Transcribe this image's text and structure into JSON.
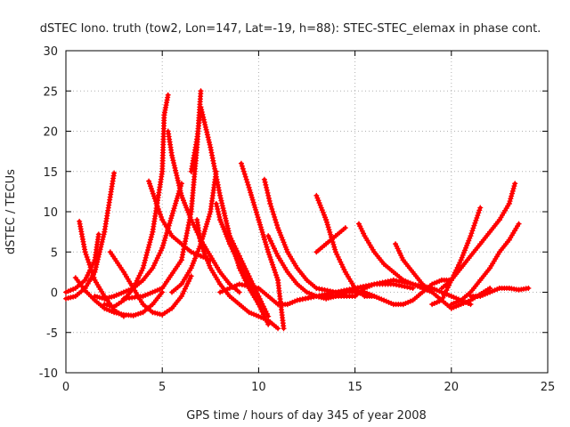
{
  "chart_data": {
    "type": "scatter",
    "title": "dSTEC Iono. truth (tow2, Lon=147, Lat=-19, h=88): STEC-STEC_elemax in phase cont.",
    "xlabel": "GPS time / hours of day 345 of year 2008",
    "ylabel": "dSTEC  / TECUs",
    "xlim": [
      0,
      25
    ],
    "ylim": [
      -10,
      30
    ],
    "xticks": [
      0,
      5,
      10,
      15,
      20,
      25
    ],
    "yticks": [
      -10,
      -5,
      0,
      5,
      10,
      15,
      20,
      25,
      30
    ],
    "grid": true,
    "marker": "plus",
    "color": "#ff0000",
    "series": [
      {
        "x": [
          0.0,
          0.5,
          1.0,
          1.5,
          2.0,
          2.5
        ],
        "y": [
          -0.8,
          -0.5,
          0.5,
          2.5,
          7.5,
          14.8
        ]
      },
      {
        "x": [
          0.0,
          0.5,
          1.0,
          1.5,
          1.7
        ],
        "y": [
          0.0,
          0.5,
          1.5,
          4.0,
          7.2
        ]
      },
      {
        "x": [
          0.7,
          1.0,
          1.5,
          2.0,
          2.5,
          3.0
        ],
        "y": [
          8.8,
          5.0,
          1.5,
          -0.5,
          -2.2,
          -3.0
        ]
      },
      {
        "x": [
          0.5,
          1.0,
          1.5,
          2.0,
          2.5,
          3.0,
          3.5,
          4.0,
          4.5,
          5.0
        ],
        "y": [
          1.8,
          0.2,
          -1.0,
          -2.0,
          -2.5,
          -2.8,
          -2.9,
          -2.5,
          -1.5,
          0.0
        ]
      },
      {
        "x": [
          1.5,
          2.0,
          2.5,
          3.0,
          3.5,
          4.0,
          4.5,
          5.0,
          5.5,
          6.0
        ],
        "y": [
          -0.5,
          -0.8,
          -0.5,
          0.0,
          0.5,
          1.5,
          3.0,
          5.5,
          9.5,
          13.5
        ]
      },
      {
        "x": [
          2.0,
          2.5,
          3.0,
          3.5,
          4.0,
          4.5,
          5.0,
          5.1,
          5.3
        ],
        "y": [
          -1.5,
          -1.8,
          -1.0,
          0.5,
          3.0,
          7.5,
          15.0,
          22.0,
          24.5
        ]
      },
      {
        "x": [
          2.3,
          3.0,
          3.5,
          4.0,
          4.5,
          5.0,
          5.5,
          6.0,
          6.5
        ],
        "y": [
          5.0,
          2.5,
          0.5,
          -1.5,
          -2.5,
          -2.8,
          -2.0,
          -0.5,
          2.0
        ]
      },
      {
        "x": [
          3.0,
          4.0,
          5.0,
          6.0,
          6.5,
          6.8,
          7.0
        ],
        "y": [
          -0.8,
          -0.5,
          0.5,
          4.0,
          10.0,
          18.0,
          25.0
        ]
      },
      {
        "x": [
          4.3,
          4.7,
          5.0,
          5.5,
          6.0,
          6.5,
          7.0,
          7.5
        ],
        "y": [
          13.8,
          11.0,
          9.0,
          7.0,
          6.0,
          5.0,
          4.5,
          4.0
        ]
      },
      {
        "x": [
          5.3,
          5.5,
          6.0,
          6.5,
          7.0,
          7.5,
          8.0,
          8.5,
          9.0
        ],
        "y": [
          20.0,
          17.0,
          12.0,
          9.0,
          6.5,
          4.5,
          2.5,
          1.0,
          0.0
        ]
      },
      {
        "x": [
          6.5,
          6.8,
          7.0,
          7.5,
          8.0,
          8.5,
          9.0,
          9.5,
          10.0
        ],
        "y": [
          15.0,
          19.0,
          23.0,
          18.0,
          12.0,
          7.0,
          3.0,
          0.5,
          -1.5
        ]
      },
      {
        "x": [
          5.5,
          6.0,
          6.5,
          7.0,
          7.5,
          7.8
        ],
        "y": [
          0.0,
          1.0,
          3.0,
          6.0,
          10.0,
          15.0
        ]
      },
      {
        "x": [
          6.8,
          7.0,
          7.5,
          8.0,
          8.5,
          9.0,
          9.5,
          10.0,
          10.5,
          11.0
        ],
        "y": [
          9.0,
          6.0,
          3.0,
          1.0,
          -0.5,
          -1.5,
          -2.5,
          -3.0,
          -3.5,
          -4.5
        ]
      },
      {
        "x": [
          7.8,
          8.0,
          8.5,
          9.0,
          9.5,
          10.0,
          10.5
        ],
        "y": [
          11.0,
          9.0,
          6.0,
          3.5,
          1.0,
          -1.5,
          -4.0
        ]
      },
      {
        "x": [
          8.5,
          9.0,
          9.5,
          10.0,
          10.5
        ],
        "y": [
          7.0,
          4.5,
          2.0,
          -0.5,
          -3.0
        ]
      },
      {
        "x": [
          9.1,
          9.5,
          10.0,
          10.5,
          11.0,
          11.3
        ],
        "y": [
          16.0,
          13.0,
          9.0,
          5.0,
          1.5,
          -4.5
        ]
      },
      {
        "x": [
          10.3,
          10.6,
          11.0,
          11.5,
          12.0,
          12.5,
          13.0,
          14.0,
          15.0,
          16.0
        ],
        "y": [
          14.0,
          11.0,
          8.0,
          5.0,
          3.0,
          1.5,
          0.5,
          0.0,
          0.0,
          -0.5
        ]
      },
      {
        "x": [
          8.0,
          9.0,
          10.0,
          10.5,
          11.0,
          11.5,
          12.0,
          13.0,
          14.0,
          15.0
        ],
        "y": [
          0.0,
          1.0,
          0.5,
          -0.5,
          -1.5,
          -1.5,
          -1.0,
          -0.5,
          -0.5,
          -0.5
        ]
      },
      {
        "x": [
          10.5,
          11.0,
          11.5,
          12.0,
          12.5,
          13.0,
          13.5,
          14.0,
          14.5,
          15.0
        ],
        "y": [
          7.0,
          4.5,
          2.5,
          1.0,
          0.0,
          -0.5,
          -0.8,
          -0.5,
          0.0,
          0.5
        ]
      },
      {
        "x": [
          13.0,
          13.5,
          14.0,
          14.5,
          15.0,
          15.5,
          16.0
        ],
        "y": [
          12.0,
          9.0,
          5.0,
          2.5,
          0.5,
          -0.5,
          -0.5
        ]
      },
      {
        "x": [
          12.0,
          13.0,
          14.0,
          15.0,
          16.0,
          17.0,
          18.0
        ],
        "y": [
          -1.0,
          -0.5,
          0.0,
          0.5,
          1.0,
          1.0,
          0.5
        ]
      },
      {
        "x": [
          13.0,
          13.5,
          14.0,
          14.5
        ],
        "y": [
          5.0,
          6.0,
          7.0,
          8.0
        ]
      },
      {
        "x": [
          15.2,
          15.5,
          16.0,
          16.5,
          17.0,
          17.5,
          18.0,
          18.5,
          19.0
        ],
        "y": [
          8.5,
          7.0,
          5.0,
          3.5,
          2.5,
          1.5,
          1.0,
          0.5,
          0.0
        ]
      },
      {
        "x": [
          15.5,
          16.0,
          16.5,
          17.0,
          17.5,
          18.0,
          18.5,
          19.0,
          19.5,
          20.0
        ],
        "y": [
          0.0,
          -0.5,
          -1.0,
          -1.5,
          -1.5,
          -1.0,
          0.0,
          1.0,
          1.5,
          1.5
        ]
      },
      {
        "x": [
          15.0,
          15.5,
          16.0,
          17.0,
          18.0,
          19.0,
          19.5,
          20.0,
          20.5,
          21.0
        ],
        "y": [
          -0.5,
          0.5,
          1.0,
          1.5,
          1.0,
          0.5,
          0.0,
          -0.5,
          -1.0,
          -1.5
        ]
      },
      {
        "x": [
          17.1,
          17.5,
          18.0,
          18.5,
          19.0,
          19.5,
          20.0,
          21.0,
          22.0
        ],
        "y": [
          6.0,
          4.0,
          2.5,
          1.0,
          0.0,
          -1.0,
          -2.0,
          -1.0,
          0.5
        ]
      },
      {
        "x": [
          19.0,
          19.5,
          20.0,
          20.5,
          21.0,
          21.5
        ],
        "y": [
          -1.5,
          -1.0,
          1.5,
          4.0,
          7.0,
          10.5
        ]
      },
      {
        "x": [
          19.5,
          20.0,
          20.5,
          21.0,
          21.5,
          22.0,
          22.5,
          23.0,
          23.3
        ],
        "y": [
          0.5,
          1.5,
          3.0,
          4.5,
          6.0,
          7.5,
          9.0,
          11.0,
          13.5
        ]
      },
      {
        "x": [
          20.0,
          20.5,
          21.0,
          21.5,
          22.0,
          22.5,
          23.0,
          23.5
        ],
        "y": [
          -1.5,
          -1.0,
          0.0,
          1.5,
          3.0,
          5.0,
          6.5,
          8.5
        ]
      },
      {
        "x": [
          21.0,
          21.5,
          22.0,
          22.5,
          23.0,
          23.5,
          24.0
        ],
        "y": [
          -0.5,
          -0.5,
          0.0,
          0.5,
          0.5,
          0.3,
          0.5
        ]
      }
    ]
  }
}
